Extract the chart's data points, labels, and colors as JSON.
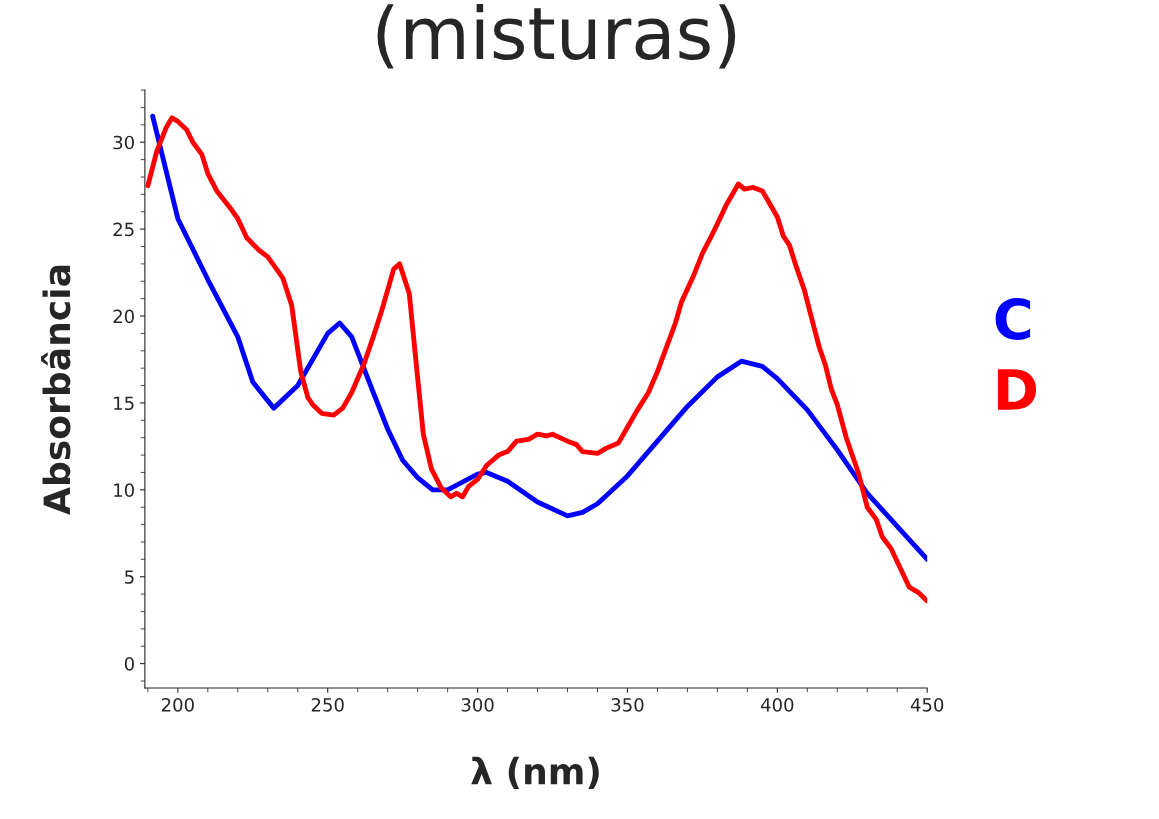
{
  "chart_data": {
    "type": "line",
    "title": "(misturas)",
    "xlabel": "λ (nm)",
    "ylabel": "Absorbância",
    "xlim": [
      189,
      450
    ],
    "xticks": [
      200,
      250,
      300,
      350,
      400,
      450
    ],
    "ylim": [
      -1.4,
      33
    ],
    "yticks": [
      0,
      5,
      10,
      15,
      20,
      25,
      30
    ],
    "grid": false,
    "legend": "right",
    "line_style": "solid",
    "marker": "none",
    "series": [
      {
        "name": "C",
        "color": "#0000ff",
        "x": [
          191.6,
          200,
          210,
          220,
          225,
          232,
          240,
          250,
          254,
          258,
          265,
          270,
          275,
          280,
          285,
          290,
          300,
          303,
          310,
          320,
          330,
          335,
          340,
          350,
          360,
          370,
          380,
          388,
          395,
          400,
          410,
          420,
          430,
          440,
          450
        ],
        "values": [
          31.5,
          25.6,
          22.1,
          18.8,
          16.2,
          14.7,
          16.0,
          19.0,
          19.6,
          18.8,
          15.7,
          13.5,
          11.7,
          10.7,
          10.0,
          10.0,
          10.9,
          11.0,
          10.5,
          9.3,
          8.5,
          8.7,
          9.2,
          10.8,
          12.8,
          14.8,
          16.5,
          17.4,
          17.1,
          16.4,
          14.6,
          12.3,
          9.8,
          7.9,
          6.0
        ]
      },
      {
        "name": "D",
        "color": "#ff0000",
        "x": [
          190,
          193,
          196,
          198,
          200,
          203,
          205,
          208,
          210,
          213,
          218,
          220,
          223,
          227,
          230,
          235,
          238,
          241,
          243.4,
          245,
          248,
          252,
          255,
          258,
          262,
          265,
          268,
          272,
          274,
          277.2,
          279.5,
          281.9,
          284.6,
          287.9,
          291,
          293,
          295,
          297,
          300,
          303,
          307,
          310,
          313,
          317,
          320,
          323,
          325,
          330,
          333,
          335,
          340,
          343,
          347,
          350,
          353,
          357,
          360,
          363,
          366,
          368,
          372,
          375,
          378,
          380,
          383,
          387,
          389,
          392,
          395,
          398,
          400,
          402,
          404,
          406,
          409,
          412,
          414,
          416,
          418,
          420,
          423,
          427,
          430,
          433,
          435,
          438,
          441,
          444,
          447,
          450
        ],
        "values": [
          27.5,
          29.5,
          30.8,
          31.4,
          31.2,
          30.7,
          30.0,
          29.3,
          28.2,
          27.2,
          26.1,
          25.6,
          24.5,
          23.8,
          23.4,
          22.2,
          20.6,
          16.8,
          15.3,
          14.9,
          14.4,
          14.3,
          14.7,
          15.6,
          17.2,
          18.7,
          20.3,
          22.7,
          23.0,
          21.3,
          17.3,
          13.2,
          11.2,
          10.1,
          9.6,
          9.8,
          9.6,
          10.2,
          10.6,
          11.4,
          12.0,
          12.2,
          12.8,
          12.9,
          13.2,
          13.1,
          13.2,
          12.8,
          12.6,
          12.2,
          12.1,
          12.4,
          12.7,
          13.6,
          14.5,
          15.6,
          16.8,
          18.2,
          19.6,
          20.8,
          22.3,
          23.6,
          24.6,
          25.3,
          26.4,
          27.6,
          27.3,
          27.4,
          27.2,
          26.3,
          25.7,
          24.6,
          24.1,
          23.0,
          21.5,
          19.5,
          18.2,
          17.2,
          15.8,
          14.9,
          13.0,
          11.0,
          9.0,
          8.3,
          7.3,
          6.6,
          5.5,
          4.4,
          4.1,
          3.6
        ]
      }
    ]
  }
}
